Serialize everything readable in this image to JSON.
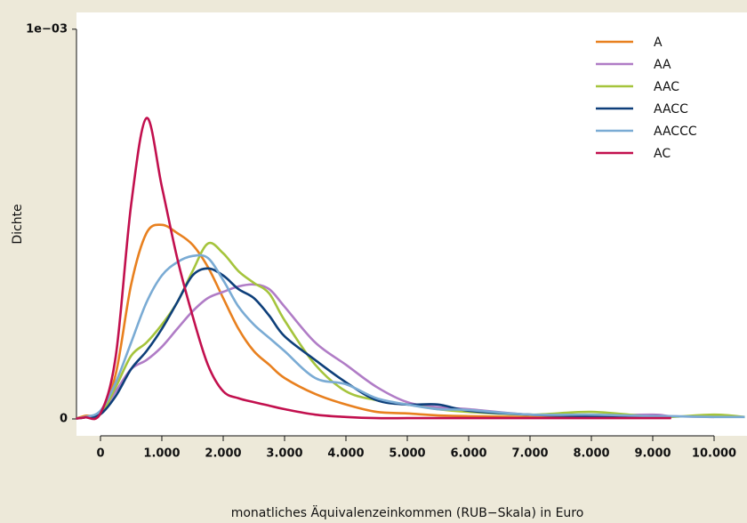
{
  "chart_data": {
    "type": "line",
    "x_label": "monatliches Äquivalenzeinkommen (RUB−Skala) in Euro",
    "y_label": "Dichte",
    "x": [
      -400,
      -250,
      0,
      250,
      500,
      750,
      1000,
      1250,
      1500,
      1750,
      2000,
      2250,
      2500,
      2750,
      3000,
      3500,
      4000,
      4500,
      5000,
      5500,
      6000,
      7000,
      8000,
      9000,
      9300,
      10000,
      10500
    ],
    "series": [
      {
        "name": "A",
        "color": "#e8801f",
        "values": [
          1e-06,
          8e-06,
          1.8e-05,
          0.000116,
          0.000345,
          0.000477,
          0.000498,
          0.000477,
          0.000447,
          0.00039,
          0.00031,
          0.000231,
          0.000174,
          0.000139,
          0.000105,
          6.4e-05,
          3.7e-05,
          1.8e-05,
          1.4e-05,
          9e-06,
          7e-06,
          5e-06,
          5e-06,
          4e-06,
          4e-06,
          null,
          null
        ]
      },
      {
        "name": "AA",
        "color": "#b07cc6",
        "values": [
          1e-06,
          4e-06,
          1.5e-05,
          7.1e-05,
          0.000128,
          0.000151,
          0.000185,
          0.000231,
          0.000276,
          0.00031,
          0.000326,
          0.00034,
          0.000345,
          0.000333,
          0.000288,
          0.000196,
          0.000139,
          8.2e-05,
          4.3e-05,
          3e-05,
          2.5e-05,
          1.1e-05,
          9e-06,
          1.1e-05,
          7e-06,
          5e-06,
          null
        ]
      },
      {
        "name": "AAC",
        "color": "#a5c43c",
        "values": [
          1e-06,
          4e-06,
          1.2e-05,
          8.2e-05,
          0.000162,
          0.000196,
          0.000242,
          0.000299,
          0.000379,
          0.00045,
          0.000425,
          0.000379,
          0.000349,
          0.000322,
          0.000253,
          0.000139,
          7.1e-05,
          4.8e-05,
          3.7e-05,
          2.5e-05,
          1.8e-05,
          1.1e-05,
          1.8e-05,
          5e-06,
          5e-06,
          1.1e-05,
          5e-06
        ]
      },
      {
        "name": "AACC",
        "color": "#0e3f7a",
        "values": [
          1e-06,
          4e-06,
          1.2e-05,
          5.9e-05,
          0.000128,
          0.000174,
          0.000231,
          0.000299,
          0.000368,
          0.000386,
          0.000368,
          0.000333,
          0.00031,
          0.000265,
          0.000212,
          0.000151,
          9.4e-05,
          4.8e-05,
          3.7e-05,
          3.7e-05,
          2.1e-05,
          1.1e-05,
          7e-06,
          7e-06,
          5e-06,
          null,
          null
        ]
      },
      {
        "name": "AACCC",
        "color": "#7aabd4",
        "values": [
          1e-06,
          5e-06,
          2.1e-05,
          9.4e-05,
          0.000196,
          0.000299,
          0.000368,
          0.000402,
          0.000418,
          0.000413,
          0.000356,
          0.000288,
          0.000242,
          0.000208,
          0.000174,
          0.000105,
          8.9e-05,
          5.3e-05,
          3.7e-05,
          2.5e-05,
          2.3e-05,
          1.1e-05,
          1.1e-05,
          7e-06,
          7e-06,
          5e-06,
          5e-06
        ]
      },
      {
        "name": "AC",
        "color": "#c2104e",
        "values": [
          1e-06,
          4e-06,
          1.4e-05,
          0.000162,
          0.00055,
          0.000772,
          0.000596,
          0.000413,
          0.000265,
          0.000139,
          7.1e-05,
          5.3e-05,
          4.3e-05,
          3.4e-05,
          2.5e-05,
          1.1e-05,
          5e-06,
          2e-06,
          2e-06,
          2e-06,
          2e-06,
          2e-06,
          2e-06,
          2e-06,
          2e-06,
          null,
          null
        ]
      }
    ],
    "xlim": [
      -391,
      10536
    ],
    "ylim": [
      -4.34e-05,
      0.001043
    ],
    "xticks": [
      0,
      {
        "value": 1000,
        "label": "1.000"
      },
      {
        "value": 2000,
        "label": "2.000"
      },
      {
        "value": 3000,
        "label": "3.000"
      },
      {
        "value": 4000,
        "label": "4.000"
      },
      {
        "value": 5000,
        "label": "5.000"
      },
      {
        "value": 6000,
        "label": "6.000"
      },
      {
        "value": 7000,
        "label": "7.000"
      },
      {
        "value": 8000,
        "label": "8.000"
      },
      {
        "value": 9000,
        "label": "9.000"
      },
      {
        "value": 10000,
        "label": "10.000"
      }
    ],
    "yticks": [
      0,
      {
        "value": 0.001,
        "label": "1e−03"
      }
    ],
    "legend": "top-right"
  }
}
